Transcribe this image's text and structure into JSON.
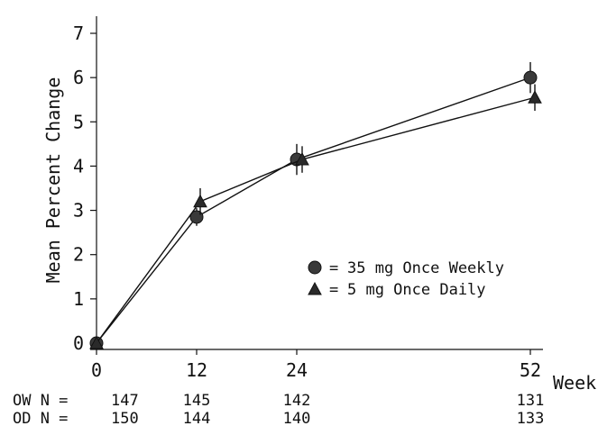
{
  "chart_data": {
    "type": "line",
    "title": "",
    "ylabel": "Mean Percent Change",
    "xlabel": "Week",
    "x": [
      0,
      12,
      24,
      52
    ],
    "xlim": [
      0,
      52
    ],
    "ylim": [
      0,
      7
    ],
    "y_ticks": [
      0,
      1,
      2,
      3,
      4,
      5,
      6,
      7
    ],
    "grid": false,
    "legend_position": "center-right",
    "series": [
      {
        "name": "35 mg Once Weekly",
        "marker": "circle",
        "values": [
          0,
          2.85,
          4.15,
          6.0
        ],
        "error": [
          0,
          0.2,
          0.35,
          0.35
        ],
        "n_label": "OW N =",
        "n": [
          147,
          145,
          142,
          131
        ]
      },
      {
        "name": "5 mg Once Daily",
        "marker": "triangle",
        "values": [
          0,
          3.2,
          4.15,
          5.55
        ],
        "error": [
          0,
          0.3,
          0.3,
          0.3
        ],
        "n_label": "OD N =",
        "n": [
          150,
          144,
          140,
          133
        ]
      }
    ],
    "legend_prefix": "="
  }
}
